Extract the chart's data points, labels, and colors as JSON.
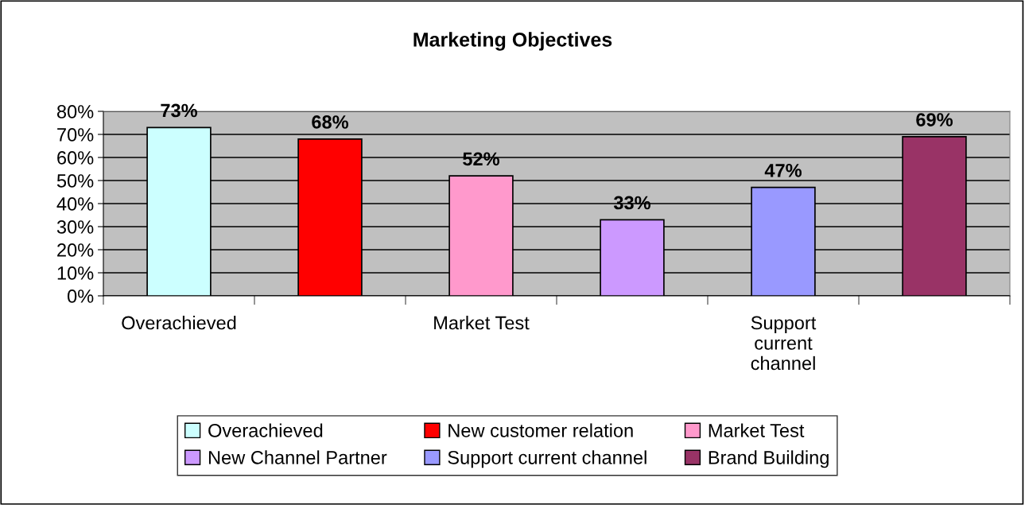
{
  "chart_data": {
    "type": "bar",
    "title": "Marketing Objectives",
    "categories": [
      "Overachieved",
      null,
      "Market Test",
      null,
      "Support\ncurrent\nchannel",
      null
    ],
    "series": [
      {
        "name": "Overachieved",
        "color": "#ccffff",
        "values": [
          73,
          null,
          null,
          null,
          null,
          null
        ],
        "value_labels": [
          "73%",
          null,
          null,
          null,
          null,
          null
        ]
      },
      {
        "name": "New customer relation",
        "color": "#ff0000",
        "values": [
          null,
          68,
          null,
          null,
          null,
          null
        ],
        "value_labels": [
          null,
          "68%",
          null,
          null,
          null,
          null
        ]
      },
      {
        "name": "Market Test",
        "color": "#ff99cc",
        "values": [
          null,
          null,
          52,
          null,
          null,
          null
        ],
        "value_labels": [
          null,
          null,
          "52%",
          null,
          null,
          null
        ]
      },
      {
        "name": "New Channel Partner",
        "color": "#cc99ff",
        "values": [
          null,
          null,
          null,
          33,
          null,
          null
        ],
        "value_labels": [
          null,
          null,
          null,
          "33%",
          null,
          null
        ]
      },
      {
        "name": "Support current channel",
        "color": "#9999ff",
        "values": [
          null,
          null,
          null,
          null,
          47,
          null
        ],
        "value_labels": [
          null,
          null,
          null,
          null,
          "47%",
          null
        ]
      },
      {
        "name": "Brand Building",
        "color": "#993366",
        "values": [
          null,
          null,
          null,
          null,
          null,
          69
        ],
        "value_labels": [
          null,
          null,
          null,
          null,
          null,
          "69%"
        ]
      }
    ],
    "ylim": [
      0,
      80
    ],
    "yticks": [
      {
        "value": 0,
        "label": "0%"
      },
      {
        "value": 10,
        "label": "10%"
      },
      {
        "value": 20,
        "label": "20%"
      },
      {
        "value": 30,
        "label": "30%"
      },
      {
        "value": 40,
        "label": "40%"
      },
      {
        "value": 50,
        "label": "50%"
      },
      {
        "value": 60,
        "label": "60%"
      },
      {
        "value": 70,
        "label": "70%"
      },
      {
        "value": 80,
        "label": "80%"
      }
    ],
    "grid": "y",
    "legend": "bottom"
  }
}
